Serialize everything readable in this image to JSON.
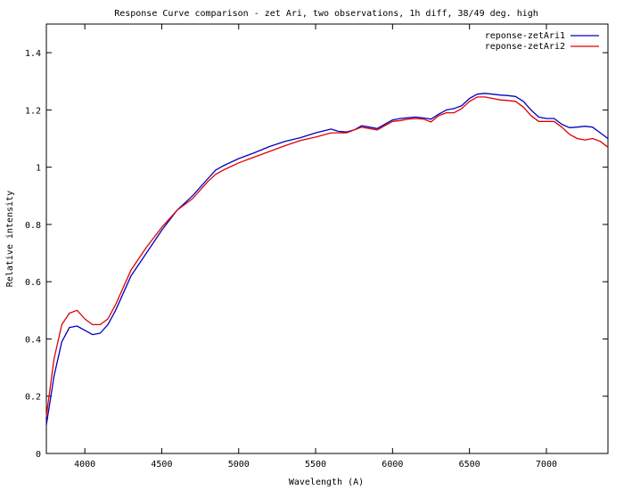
{
  "chart_data": {
    "type": "line",
    "title": "Response Curve comparison - zet Ari, two observations, 1h diff, 38/49 deg. high",
    "xlabel": "Wavelength (A)",
    "ylabel": "Relative intensity",
    "xlim": [
      3750,
      7400
    ],
    "ylim": [
      0,
      1.5
    ],
    "x_ticks": [
      4000,
      4500,
      5000,
      5500,
      6000,
      6500,
      7000
    ],
    "y_ticks": [
      0,
      0.2,
      0.4,
      0.6,
      0.8,
      1,
      1.2,
      1.4
    ],
    "grid": false,
    "legend": "top-right",
    "series": [
      {
        "name": "reponse-zetAri1",
        "color": "#0000c0",
        "x": [
          3750,
          3800,
          3850,
          3900,
          3950,
          4000,
          4050,
          4100,
          4150,
          4200,
          4300,
          4400,
          4500,
          4600,
          4700,
          4800,
          4850,
          4900,
          5000,
          5100,
          5200,
          5300,
          5400,
          5500,
          5600,
          5650,
          5700,
          5750,
          5800,
          5850,
          5900,
          5950,
          6000,
          6050,
          6100,
          6150,
          6200,
          6250,
          6300,
          6350,
          6400,
          6450,
          6500,
          6550,
          6600,
          6650,
          6700,
          6750,
          6800,
          6850,
          6900,
          6950,
          7000,
          7050,
          7100,
          7150,
          7200,
          7250,
          7300,
          7350,
          7400
        ],
        "y": [
          0.1,
          0.27,
          0.39,
          0.44,
          0.445,
          0.43,
          0.415,
          0.42,
          0.45,
          0.5,
          0.62,
          0.7,
          0.78,
          0.85,
          0.9,
          0.96,
          0.99,
          1.005,
          1.03,
          1.05,
          1.072,
          1.09,
          1.103,
          1.12,
          1.133,
          1.125,
          1.123,
          1.13,
          1.145,
          1.14,
          1.135,
          1.15,
          1.165,
          1.17,
          1.173,
          1.175,
          1.172,
          1.168,
          1.185,
          1.2,
          1.205,
          1.215,
          1.24,
          1.255,
          1.258,
          1.255,
          1.252,
          1.25,
          1.247,
          1.23,
          1.2,
          1.175,
          1.17,
          1.17,
          1.15,
          1.138,
          1.14,
          1.143,
          1.14,
          1.12,
          1.1
        ]
      },
      {
        "name": "reponse-zetAri2",
        "color": "#e00000",
        "x": [
          3750,
          3800,
          3850,
          3900,
          3950,
          4000,
          4050,
          4100,
          4150,
          4200,
          4300,
          4400,
          4500,
          4600,
          4700,
          4800,
          4850,
          4900,
          5000,
          5100,
          5200,
          5300,
          5400,
          5500,
          5600,
          5650,
          5700,
          5750,
          5800,
          5850,
          5900,
          5950,
          6000,
          6050,
          6100,
          6150,
          6200,
          6250,
          6300,
          6350,
          6400,
          6450,
          6500,
          6550,
          6600,
          6650,
          6700,
          6750,
          6800,
          6850,
          6900,
          6950,
          7000,
          7050,
          7100,
          7150,
          7200,
          7250,
          7300,
          7350,
          7400
        ],
        "y": [
          0.13,
          0.33,
          0.45,
          0.49,
          0.5,
          0.47,
          0.45,
          0.45,
          0.47,
          0.52,
          0.64,
          0.72,
          0.79,
          0.85,
          0.89,
          0.95,
          0.975,
          0.99,
          1.015,
          1.035,
          1.055,
          1.075,
          1.093,
          1.105,
          1.12,
          1.12,
          1.12,
          1.13,
          1.14,
          1.135,
          1.13,
          1.145,
          1.16,
          1.163,
          1.168,
          1.17,
          1.168,
          1.158,
          1.18,
          1.19,
          1.19,
          1.205,
          1.23,
          1.245,
          1.245,
          1.24,
          1.235,
          1.233,
          1.23,
          1.21,
          1.18,
          1.16,
          1.16,
          1.16,
          1.14,
          1.115,
          1.1,
          1.095,
          1.1,
          1.09,
          1.07
        ]
      }
    ]
  }
}
